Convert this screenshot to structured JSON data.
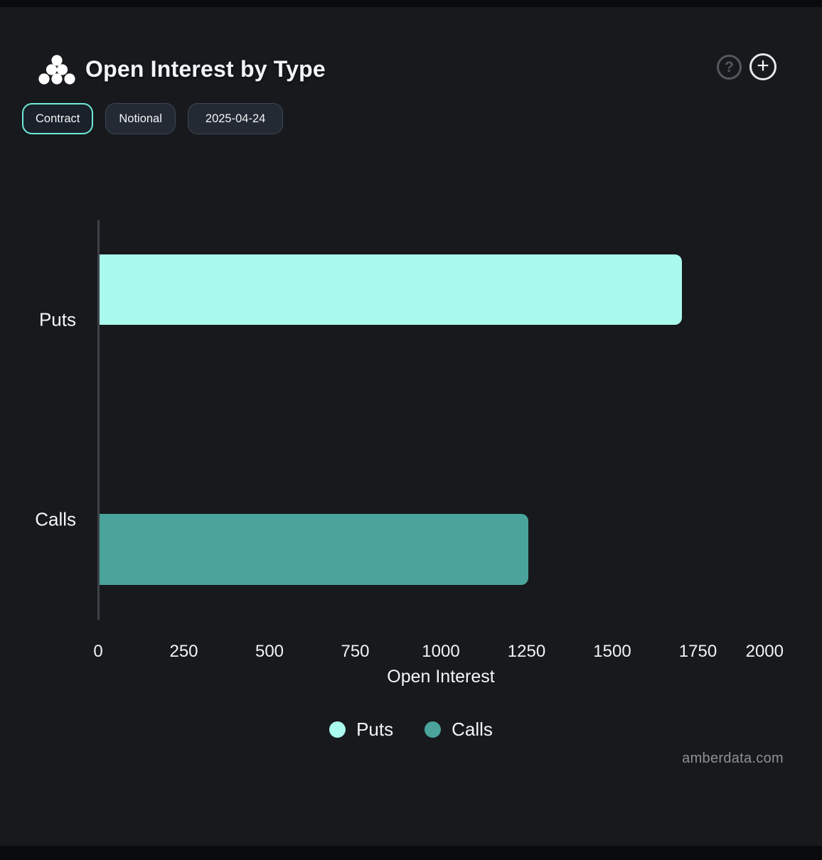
{
  "header": {
    "title": "Open Interest by Type"
  },
  "icons": {
    "help_glyph": "?",
    "add_glyph": "+"
  },
  "toolbar": {
    "buttons": [
      {
        "label": "Contract",
        "active": true
      },
      {
        "label": "Notional",
        "active": false
      },
      {
        "label": "2025-04-24",
        "active": false
      }
    ]
  },
  "chart_data": {
    "type": "bar",
    "orientation": "horizontal",
    "categories": [
      "Puts",
      "Calls"
    ],
    "values": [
      1700,
      1250
    ],
    "colors": [
      "#ABFAEE",
      "#4AA49B"
    ],
    "title": "Open Interest by Type",
    "xlabel": "Open Interest",
    "ylabel": "",
    "xlim": [
      0,
      2000
    ],
    "xticks": [
      0,
      250,
      500,
      750,
      1000,
      1250,
      1500,
      1750,
      2000
    ],
    "grid": false,
    "legend": [
      {
        "label": "Puts",
        "color": "#ABFAEE"
      },
      {
        "label": "Calls",
        "color": "#4AA49B"
      }
    ],
    "legend_position": "bottom"
  },
  "footer": {
    "watermark": "amberdata.com"
  },
  "colors": {
    "background": "#17191d",
    "page_edge": "#0a0b0e",
    "accent": "#6FE9D6",
    "axis_line": "#3E4247",
    "text": "#F5F6F7",
    "muted_text": "#8E9093"
  }
}
